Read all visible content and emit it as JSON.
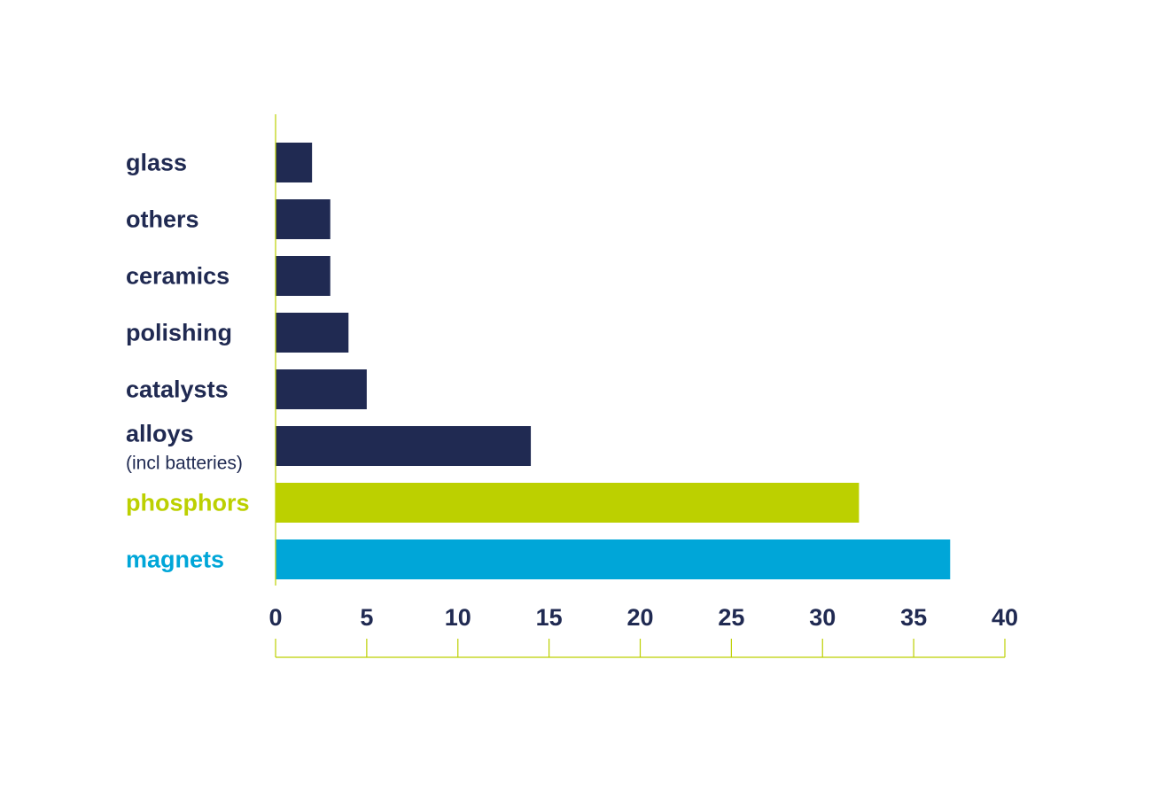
{
  "colors": {
    "default_bar": "#202a52",
    "highlight_lime": "#bcd000",
    "highlight_blue": "#00a6d8",
    "axis_line": "#bcd000",
    "tick_text": "#202a52"
  },
  "chart_data": {
    "type": "bar",
    "orientation": "horizontal",
    "categories": [
      {
        "label": "glass",
        "sublabel": "",
        "value": 2,
        "color": "#202a52"
      },
      {
        "label": "others",
        "sublabel": "",
        "value": 3,
        "color": "#202a52"
      },
      {
        "label": "ceramics",
        "sublabel": "",
        "value": 3,
        "color": "#202a52"
      },
      {
        "label": "polishing",
        "sublabel": "",
        "value": 4,
        "color": "#202a52"
      },
      {
        "label": "catalysts",
        "sublabel": "",
        "value": 5,
        "color": "#202a52"
      },
      {
        "label": "alloys",
        "sublabel": "(incl batteries)",
        "value": 14,
        "color": "#202a52"
      },
      {
        "label": "phosphors",
        "sublabel": "",
        "value": 32,
        "color": "#bcd000"
      },
      {
        "label": "magnets",
        "sublabel": "",
        "value": 37,
        "color": "#00a6d8"
      }
    ],
    "xlim": [
      0,
      40
    ],
    "xticks": [
      "0",
      "5",
      "10",
      "15",
      "20",
      "25",
      "30",
      "35",
      "40"
    ],
    "title": "",
    "xlabel": "",
    "ylabel": "",
    "grid": false,
    "legend": "none"
  }
}
